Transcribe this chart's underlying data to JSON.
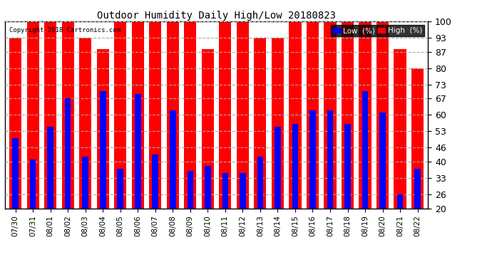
{
  "title": "Outdoor Humidity Daily High/Low 20180823",
  "copyright": "Copyright 2018 Cartronics.com",
  "dates": [
    "07/30",
    "07/31",
    "08/01",
    "08/02",
    "08/03",
    "08/04",
    "08/05",
    "08/06",
    "08/07",
    "08/08",
    "08/09",
    "08/10",
    "08/11",
    "08/12",
    "08/13",
    "08/14",
    "08/15",
    "08/16",
    "08/17",
    "08/18",
    "08/19",
    "08/20",
    "08/21",
    "08/22"
  ],
  "high": [
    93,
    100,
    100,
    100,
    93,
    88,
    100,
    100,
    100,
    100,
    100,
    88,
    100,
    100,
    93,
    93,
    100,
    100,
    100,
    100,
    100,
    100,
    88,
    80
  ],
  "low": [
    50,
    41,
    55,
    67,
    42,
    70,
    37,
    69,
    43,
    62,
    36,
    38,
    35,
    35,
    42,
    55,
    56,
    62,
    62,
    56,
    70,
    61,
    26,
    37
  ],
  "ylim": [
    20,
    100
  ],
  "yticks": [
    20,
    26,
    33,
    40,
    46,
    53,
    60,
    67,
    73,
    80,
    87,
    93,
    100
  ],
  "high_color": "#ff0000",
  "low_color": "#0000ff",
  "background_color": "#ffffff",
  "grid_color": "#aaaaaa",
  "high_bar_width": 0.7,
  "low_bar_width": 0.35,
  "legend_low_label": "Low  (%)",
  "legend_high_label": "High  (%)"
}
